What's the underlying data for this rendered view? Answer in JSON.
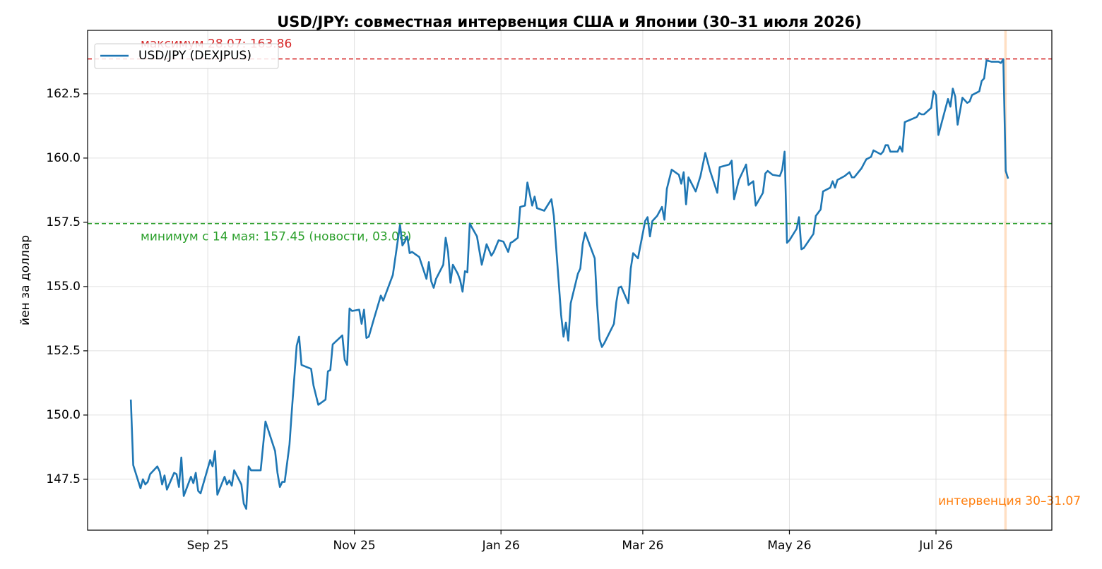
{
  "chart_data": {
    "type": "line",
    "title": "USD/JPY: совместная интервенция США и Японии (30–31 июля 2026)",
    "ylabel": "йен за доллар",
    "x": [
      211,
      212,
      215,
      216,
      217,
      218,
      219,
      222,
      223,
      224,
      225,
      226,
      229,
      230,
      231,
      232,
      233,
      234,
      236,
      237,
      238,
      239,
      240,
      244,
      245,
      246,
      247,
      250,
      251,
      252,
      253,
      254,
      257,
      258,
      259,
      260,
      261,
      265,
      267,
      271,
      272,
      273,
      274,
      275,
      277,
      278,
      280,
      281,
      282,
      286,
      287,
      289,
      292,
      293,
      294,
      295,
      299,
      300,
      301,
      302,
      303,
      306,
      307,
      308,
      309,
      310,
      312,
      315,
      316,
      317,
      320,
      323,
      324,
      325,
      326,
      327,
      328,
      331,
      334,
      335,
      336,
      337,
      338,
      341,
      342,
      343,
      344,
      345,
      347,
      348,
      349,
      350,
      351,
      352,
      355,
      357,
      359,
      361,
      362,
      364,
      366,
      368,
      369,
      370,
      372,
      373,
      375,
      376,
      378,
      379,
      380,
      383,
      386,
      387,
      390,
      391,
      392,
      393,
      394,
      397,
      398,
      399,
      400,
      404,
      405,
      406,
      407,
      408,
      412,
      413,
      414,
      415,
      418,
      419,
      420,
      422,
      425,
      426,
      427,
      428,
      430,
      432,
      433,
      434,
      436,
      439,
      440,
      441,
      442,
      443,
      446,
      448,
      450,
      452,
      455,
      456,
      460,
      461,
      462,
      464,
      467,
      468,
      470,
      471,
      474,
      475,
      476,
      478,
      481,
      482,
      483,
      484,
      485,
      488,
      489,
      490,
      491,
      495,
      496,
      498,
      499,
      502,
      503,
      504,
      505,
      508,
      510,
      511,
      512,
      515,
      517,
      519,
      520,
      523,
      524,
      525,
      526,
      527,
      530,
      531,
      532,
      533,
      538,
      539,
      540,
      541,
      544,
      545,
      546,
      547,
      551,
      552,
      553,
      554,
      555,
      557,
      559,
      560,
      561,
      564,
      565,
      566,
      567,
      569,
      572,
      573,
      574,
      575,
      576
    ],
    "series": [
      {
        "name": "USD/JPY (DEXJPUS)",
        "color": "#1f77b4",
        "values": [
          150.6,
          148.05,
          147.15,
          147.5,
          147.3,
          147.4,
          147.7,
          148.0,
          147.8,
          147.3,
          147.65,
          147.1,
          147.75,
          147.7,
          147.2,
          148.35,
          146.85,
          147.1,
          147.6,
          147.35,
          147.75,
          147.05,
          146.95,
          148.25,
          148.0,
          148.6,
          146.9,
          147.6,
          147.3,
          147.45,
          147.25,
          147.85,
          147.3,
          146.55,
          146.35,
          148.0,
          147.85,
          147.85,
          149.75,
          148.6,
          147.75,
          147.2,
          147.4,
          147.4,
          148.85,
          150.2,
          152.7,
          153.05,
          151.95,
          151.8,
          151.15,
          150.4,
          150.6,
          151.7,
          151.75,
          152.75,
          153.1,
          152.15,
          151.95,
          154.15,
          154.05,
          154.1,
          153.55,
          154.1,
          153.0,
          153.05,
          153.7,
          154.65,
          154.45,
          154.7,
          155.45,
          157.4,
          156.6,
          156.75,
          156.95,
          156.3,
          156.35,
          156.15,
          155.3,
          155.95,
          155.2,
          154.95,
          155.3,
          155.85,
          156.9,
          156.35,
          155.15,
          155.85,
          155.5,
          155.25,
          154.8,
          155.6,
          155.55,
          157.45,
          156.95,
          155.85,
          156.65,
          156.2,
          156.35,
          156.8,
          156.75,
          156.35,
          156.7,
          156.75,
          156.9,
          158.1,
          158.15,
          159.05,
          158.15,
          158.5,
          158.05,
          157.95,
          158.4,
          157.75,
          153.9,
          153.05,
          153.6,
          152.9,
          154.35,
          155.5,
          155.7,
          156.65,
          157.1,
          156.1,
          154.3,
          152.95,
          152.65,
          152.8,
          153.55,
          154.4,
          154.95,
          155.0,
          154.35,
          155.7,
          156.3,
          156.1,
          157.55,
          157.7,
          156.95,
          157.55,
          157.75,
          158.1,
          157.6,
          158.8,
          159.55,
          159.35,
          159.0,
          159.45,
          158.2,
          159.25,
          158.7,
          159.3,
          160.2,
          159.5,
          158.65,
          159.65,
          159.75,
          159.9,
          158.4,
          159.15,
          159.75,
          158.95,
          159.1,
          158.15,
          158.65,
          159.4,
          159.5,
          159.35,
          159.3,
          159.55,
          160.25,
          156.7,
          156.8,
          157.25,
          157.7,
          156.45,
          156.5,
          157.05,
          157.75,
          158.0,
          158.7,
          158.85,
          159.1,
          158.85,
          159.15,
          159.3,
          159.45,
          159.25,
          159.25,
          159.6,
          159.95,
          160.05,
          160.3,
          160.15,
          160.25,
          160.5,
          160.5,
          160.25,
          160.25,
          160.45,
          160.25,
          161.4,
          161.6,
          161.75,
          161.7,
          161.7,
          161.95,
          162.6,
          162.45,
          160.9,
          162.3,
          162.0,
          162.7,
          162.4,
          161.3,
          162.35,
          162.15,
          162.2,
          162.45,
          162.6,
          163.0,
          163.1,
          163.8,
          163.75,
          163.75,
          163.7,
          163.85,
          159.5,
          159.2
        ]
      }
    ],
    "xlim": [
      193.0,
      594.2
    ],
    "xticks": [
      {
        "value": 243,
        "label": "Sep 25"
      },
      {
        "value": 304,
        "label": "Nov 25"
      },
      {
        "value": 365,
        "label": "Jan 26"
      },
      {
        "value": 424,
        "label": "Mar 26"
      },
      {
        "value": 485,
        "label": "May 26"
      },
      {
        "value": 546,
        "label": "Jul 26"
      }
    ],
    "ylim": [
      145.52,
      164.97
    ],
    "yticks": [
      147.5,
      {
        "value": 150,
        "label": "150.0"
      },
      152.5,
      {
        "value": 155,
        "label": "155.0"
      },
      157.5,
      {
        "value": 160,
        "label": "160.0"
      },
      162.5
    ],
    "grid": true,
    "legend": "upper-left",
    "hlines": [
      {
        "value": 163.86,
        "color": "#d62728",
        "label": "максимум 28.07: 163.86"
      },
      {
        "value": 157.45,
        "color": "#2ca02c",
        "label": "минимум с 14 мая: 157.45 (новости, 03.08)"
      }
    ],
    "span": {
      "x": [
        575,
        576
      ],
      "color": "#ff7f0e",
      "label": "интервенция 30–31.07"
    }
  }
}
